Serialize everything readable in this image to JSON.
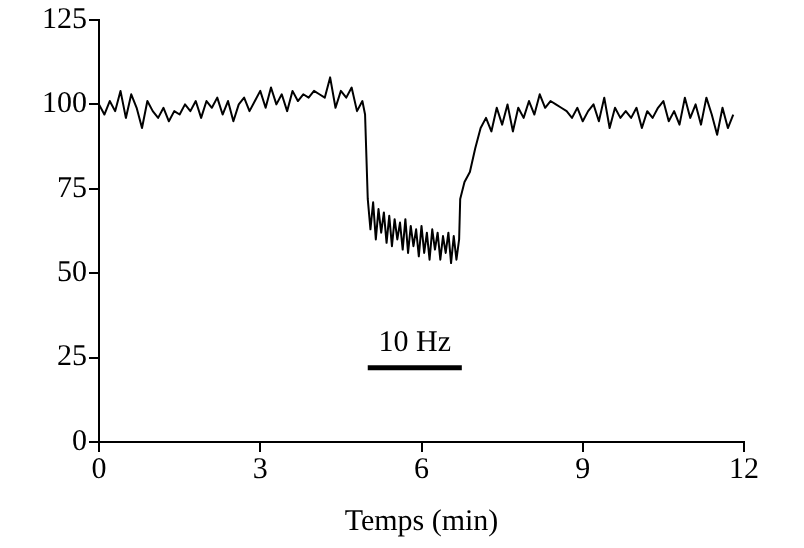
{
  "chart_data": {
    "type": "line",
    "xlabel": "Temps (min)",
    "xlim": [
      0,
      12
    ],
    "xticks": [
      0,
      3,
      6,
      9,
      12
    ],
    "ylim": [
      0,
      125
    ],
    "yticks": [
      0,
      25,
      50,
      75,
      100,
      125
    ],
    "grid": false,
    "legend": false,
    "marker": "none",
    "line_style": "solid",
    "annotations": [
      {
        "text": "10 Hz",
        "x": 5.875,
        "y": 22
      }
    ],
    "series": [
      {
        "color": "#000000",
        "x": [
          5.0,
          6.75
        ],
        "values": [
          22,
          22
        ]
      },
      {
        "color": "#000000",
        "x": [
          0,
          0.1,
          0.2,
          0.3,
          0.4,
          0.5,
          0.6,
          0.7,
          0.8,
          0.9,
          1.0,
          1.1,
          1.2,
          1.3,
          1.4,
          1.5,
          1.6,
          1.7,
          1.8,
          1.9,
          2.0,
          2.1,
          2.2,
          2.3,
          2.4,
          2.5,
          2.6,
          2.7,
          2.8,
          2.9,
          3.0,
          3.1,
          3.2,
          3.3,
          3.4,
          3.5,
          3.6,
          3.7,
          3.8,
          3.9,
          4.0,
          4.1,
          4.2,
          4.3,
          4.4,
          4.5,
          4.6,
          4.7,
          4.8,
          4.9,
          4.95,
          5.0,
          5.05,
          5.1,
          5.15,
          5.2,
          5.25,
          5.3,
          5.35,
          5.4,
          5.45,
          5.5,
          5.55,
          5.6,
          5.65,
          5.7,
          5.75,
          5.8,
          5.85,
          5.9,
          5.95,
          6.0,
          6.05,
          6.1,
          6.15,
          6.2,
          6.25,
          6.3,
          6.35,
          6.4,
          6.45,
          6.5,
          6.55,
          6.6,
          6.65,
          6.7,
          6.72,
          6.8,
          6.9,
          7.0,
          7.1,
          7.2,
          7.3,
          7.4,
          7.5,
          7.6,
          7.7,
          7.8,
          7.9,
          8.0,
          8.1,
          8.2,
          8.3,
          8.4,
          8.5,
          8.6,
          8.7,
          8.8,
          8.9,
          9.0,
          9.1,
          9.2,
          9.3,
          9.4,
          9.5,
          9.6,
          9.7,
          9.8,
          9.9,
          10.0,
          10.1,
          10.2,
          10.3,
          10.4,
          10.5,
          10.6,
          10.7,
          10.8,
          10.9,
          11.0,
          11.1,
          11.2,
          11.3,
          11.4,
          11.5,
          11.6,
          11.7,
          11.8
        ],
        "values": [
          100,
          97,
          101,
          98,
          104,
          96,
          103,
          99,
          93,
          101,
          98,
          96,
          99,
          95,
          98,
          97,
          100,
          98,
          101,
          96,
          101,
          99,
          102,
          97,
          101,
          95,
          100,
          102,
          98,
          101,
          104,
          99,
          105,
          100,
          103,
          98,
          104,
          101,
          103,
          102,
          104,
          103,
          102,
          108,
          99,
          104,
          102,
          105,
          98,
          101,
          97,
          72,
          63,
          71,
          60,
          69,
          62,
          68,
          59,
          67,
          58,
          66,
          60,
          65,
          57,
          66,
          56,
          64,
          58,
          63,
          55,
          64,
          56,
          62,
          54,
          63,
          57,
          62,
          54,
          61,
          56,
          62,
          53,
          61,
          54,
          60,
          72,
          77,
          80,
          87,
          93,
          96,
          92,
          99,
          94,
          100,
          92,
          99,
          96,
          101,
          97,
          103,
          99,
          101,
          100,
          99,
          98,
          96,
          99,
          95,
          98,
          100,
          95,
          102,
          93,
          99,
          96,
          98,
          96,
          99,
          93,
          98,
          96,
          99,
          101,
          95,
          98,
          94,
          102,
          96,
          100,
          94,
          102,
          97,
          91,
          99,
          93,
          97
        ]
      }
    ]
  }
}
